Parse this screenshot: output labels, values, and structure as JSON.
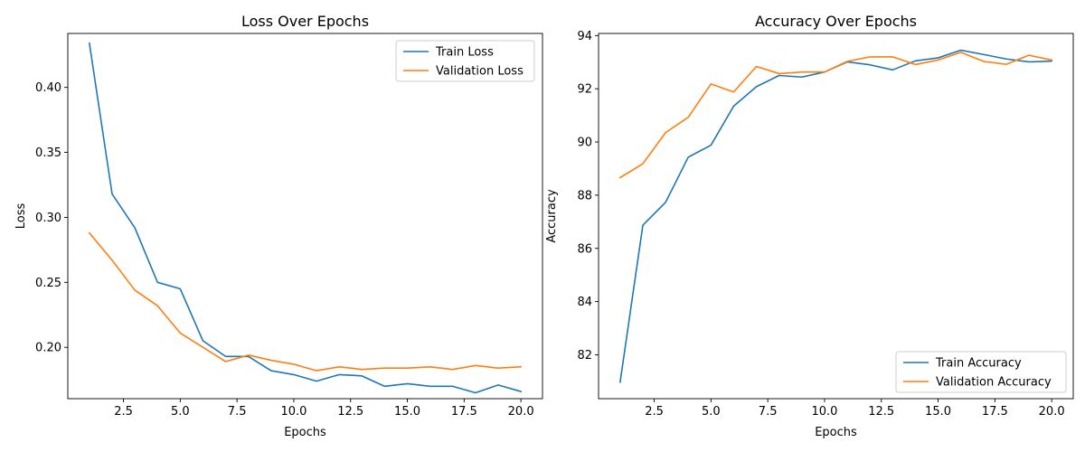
{
  "chart_data": [
    {
      "type": "line",
      "title": "Loss Over Epochs",
      "xlabel": "Epochs",
      "ylabel": "Loss",
      "xlim": [
        0.05,
        20.95
      ],
      "ylim": [
        0.1605,
        0.4415
      ],
      "xticks": [
        2.5,
        5.0,
        7.5,
        10.0,
        12.5,
        15.0,
        17.5,
        20.0
      ],
      "xtick_labels": [
        "2.5",
        "5.0",
        "7.5",
        "10.0",
        "12.5",
        "15.0",
        "17.5",
        "20.0"
      ],
      "yticks": [
        0.2,
        0.25,
        0.3,
        0.35,
        0.4
      ],
      "ytick_labels": [
        "0.20",
        "0.25",
        "0.30",
        "0.35",
        "0.40"
      ],
      "grid": false,
      "legend": "upper-right",
      "x": [
        1,
        2,
        3,
        4,
        5,
        6,
        7,
        8,
        9,
        10,
        11,
        12,
        13,
        14,
        15,
        16,
        17,
        18,
        19,
        20
      ],
      "series": [
        {
          "name": "Train Loss",
          "color": "#1f77b4",
          "values": [
            0.434,
            0.318,
            0.292,
            0.25,
            0.245,
            0.205,
            0.193,
            0.193,
            0.182,
            0.179,
            0.174,
            0.179,
            0.178,
            0.17,
            0.172,
            0.17,
            0.17,
            0.165,
            0.171,
            0.166
          ]
        },
        {
          "name": "Validation Loss",
          "color": "#ff7f0e",
          "values": [
            0.288,
            0.267,
            0.244,
            0.232,
            0.211,
            0.2,
            0.189,
            0.194,
            0.19,
            0.187,
            0.182,
            0.185,
            0.183,
            0.184,
            0.184,
            0.185,
            0.183,
            0.186,
            0.184,
            0.185
          ]
        }
      ]
    },
    {
      "type": "line",
      "title": "Accuracy Over Epochs",
      "xlabel": "Epochs",
      "ylabel": "Accuracy",
      "xlim": [
        0.05,
        20.95
      ],
      "ylim": [
        80.35,
        94.08
      ],
      "xticks": [
        2.5,
        5.0,
        7.5,
        10.0,
        12.5,
        15.0,
        17.5,
        20.0
      ],
      "xtick_labels": [
        "2.5",
        "5.0",
        "7.5",
        "10.0",
        "12.5",
        "15.0",
        "17.5",
        "20.0"
      ],
      "yticks": [
        82,
        84,
        86,
        88,
        90,
        92,
        94
      ],
      "ytick_labels": [
        "82",
        "84",
        "86",
        "88",
        "90",
        "92",
        "94"
      ],
      "grid": false,
      "legend": "lower-right",
      "x": [
        1,
        2,
        3,
        4,
        5,
        6,
        7,
        8,
        9,
        10,
        11,
        12,
        13,
        14,
        15,
        16,
        17,
        18,
        19,
        20
      ],
      "series": [
        {
          "name": "Train Accuracy",
          "color": "#1f77b4",
          "values": [
            80.97,
            86.87,
            87.73,
            89.43,
            89.88,
            91.35,
            92.08,
            92.5,
            92.44,
            92.63,
            93.01,
            92.9,
            92.71,
            93.05,
            93.16,
            93.45,
            93.29,
            93.12,
            93.01,
            93.04
          ]
        },
        {
          "name": "Validation Accuracy",
          "color": "#ff7f0e",
          "values": [
            88.66,
            89.18,
            90.35,
            90.93,
            92.18,
            91.88,
            92.84,
            92.57,
            92.63,
            92.63,
            93.03,
            93.2,
            93.2,
            92.91,
            93.08,
            93.37,
            93.03,
            92.92,
            93.26,
            93.08
          ]
        }
      ]
    }
  ]
}
